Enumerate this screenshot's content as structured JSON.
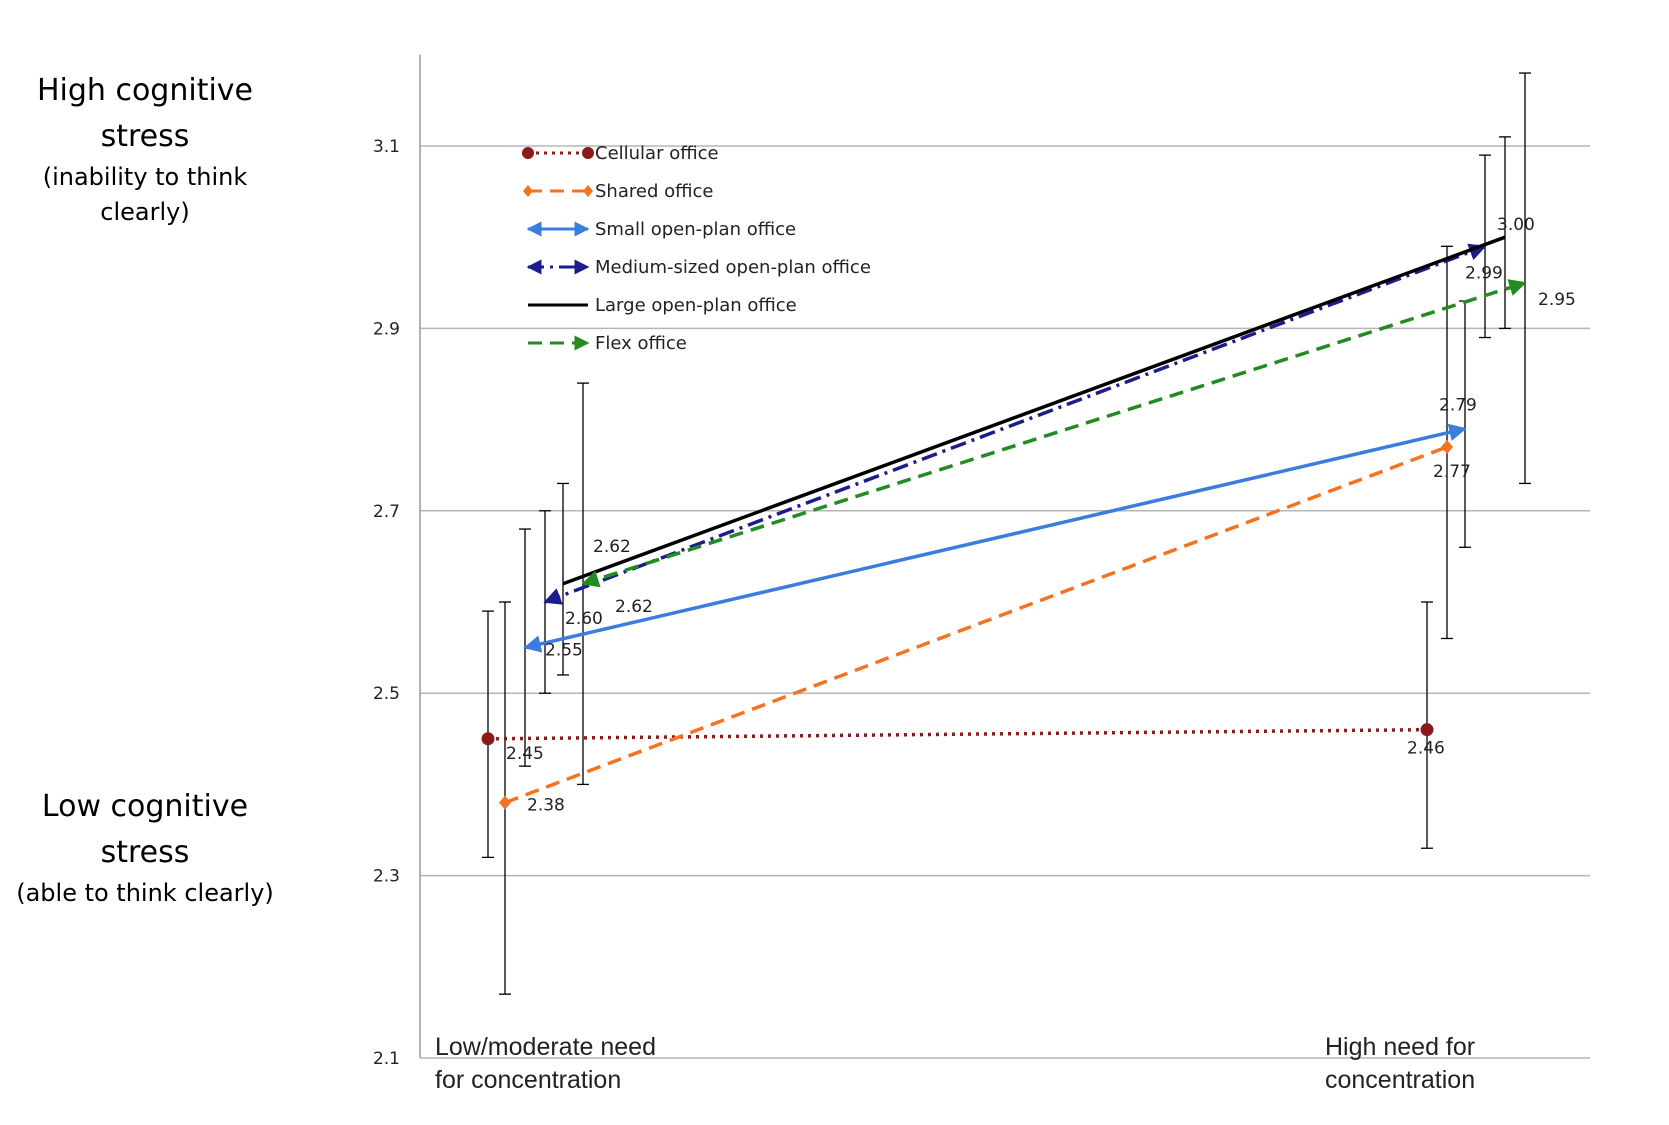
{
  "side_labels": {
    "high_title": "High cognitive stress",
    "high_sub": "(inability to think clearly)",
    "low_title": "Low cognitive stress",
    "low_sub": "(able to think clearly)"
  },
  "chart_data": {
    "type": "line",
    "categories": [
      "Low/moderate need for concentration",
      "High need for concentration"
    ],
    "ylim": [
      2.1,
      3.2
    ],
    "yticks": [
      2.1,
      2.3,
      2.5,
      2.7,
      2.9,
      3.1
    ],
    "ytick_labels": [
      "2.1",
      "2.3",
      "2.5",
      "2.7",
      "2.9",
      "3.1"
    ],
    "grid": true,
    "legend_position": "top-left",
    "series": [
      {
        "name": "Cellular office",
        "values": [
          2.45,
          2.46
        ],
        "labels": [
          "2.45",
          "2.46"
        ],
        "errors": [
          [
            2.32,
            2.59
          ],
          [
            2.33,
            2.6
          ]
        ],
        "color": "#8b1a1a",
        "style": "dotted",
        "marker": "circle"
      },
      {
        "name": "Shared office",
        "values": [
          2.38,
          2.77
        ],
        "labels": [
          "2.38",
          "2.77"
        ],
        "errors": [
          [
            2.17,
            2.6
          ],
          [
            2.56,
            2.99
          ]
        ],
        "color": "#f47321",
        "style": "dashed",
        "marker": "diamond"
      },
      {
        "name": "Small open-plan office",
        "values": [
          2.55,
          2.79
        ],
        "labels": [
          "2.55",
          "2.79"
        ],
        "errors": [
          [
            2.42,
            2.68
          ],
          [
            2.66,
            2.93
          ]
        ],
        "color": "#3b7ddd",
        "style": "solid",
        "marker": "arrow"
      },
      {
        "name": "Medium-sized open-plan office",
        "values": [
          2.6,
          2.99
        ],
        "labels": [
          "2.60",
          "2.99"
        ],
        "errors": [
          [
            2.5,
            2.7
          ],
          [
            2.89,
            3.09
          ]
        ],
        "color": "#1c1c8c",
        "style": "dashdot",
        "marker": "arrow"
      },
      {
        "name": "Large open-plan office",
        "values": [
          2.62,
          3.0
        ],
        "labels": [
          "2.62",
          "3.00"
        ],
        "errors": [
          [
            2.52,
            2.73
          ],
          [
            2.9,
            3.11
          ]
        ],
        "color": "#000000",
        "style": "solid",
        "marker": "none"
      },
      {
        "name": "Flex office",
        "values": [
          2.62,
          2.95
        ],
        "labels": [
          "2.62",
          "2.95"
        ],
        "errors": [
          [
            2.4,
            2.84
          ],
          [
            2.73,
            3.18
          ]
        ],
        "color": "#228b22",
        "style": "dashed",
        "marker": "arrow"
      }
    ]
  }
}
